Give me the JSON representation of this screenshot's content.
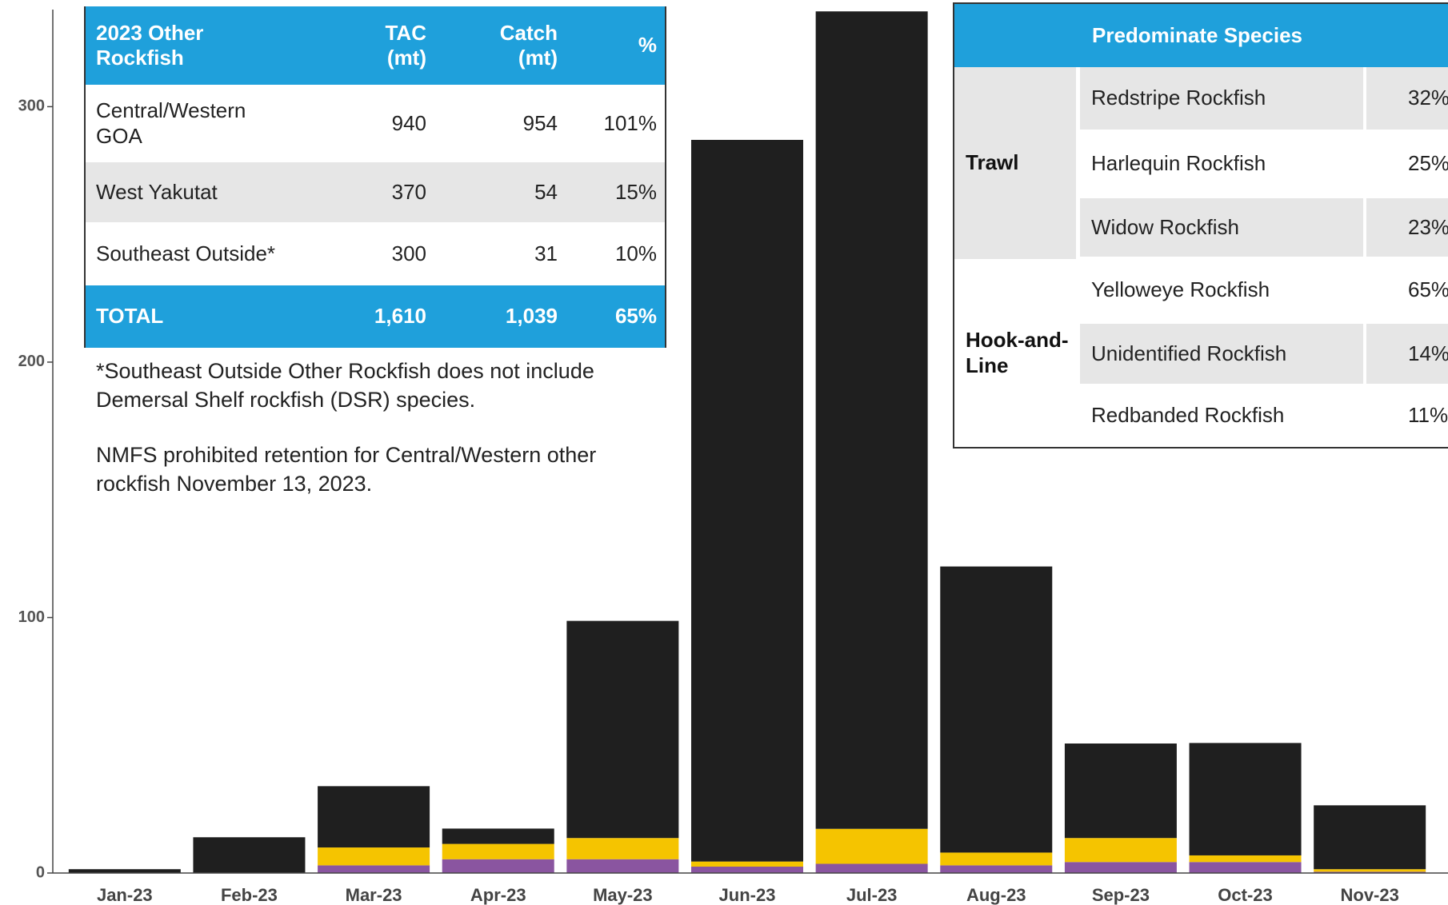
{
  "chart_data": {
    "type": "stacked_bar",
    "categories": [
      "Jan-23",
      "Feb-23",
      "Mar-23",
      "Apr-23",
      "May-23",
      "Jun-23",
      "Jul-23",
      "Aug-23",
      "Sep-23",
      "Oct-23",
      "Nov-23"
    ],
    "series": [
      {
        "color": "#8a55a0",
        "values": [
          0,
          0,
          3,
          5.4,
          5.4,
          2.5,
          3.6,
          3,
          4.3,
          4.3,
          0.5
        ]
      },
      {
        "color": "#f5c400",
        "values": [
          0,
          0,
          7,
          6,
          8.3,
          2,
          13.7,
          5,
          9.4,
          2.6,
          1
        ]
      },
      {
        "color": "#1f1f1f",
        "values": [
          1.5,
          14,
          24,
          6,
          85,
          282.5,
          320,
          112,
          37,
          44,
          25
        ]
      }
    ],
    "ylim": [
      0,
      338
    ],
    "yticks": [
      0,
      100,
      200,
      300
    ]
  },
  "catch_table": {
    "header": [
      "2023 Other Rockfish",
      "TAC (mt)",
      "Catch (mt)",
      "%"
    ],
    "rows": [
      [
        "Central/Western GOA",
        "940",
        "954",
        "101%"
      ],
      [
        "West Yakutat",
        "370",
        "54",
        "15%"
      ],
      [
        "Southeast Outside*",
        "300",
        "31",
        "10%"
      ]
    ],
    "total": [
      "TOTAL",
      "1,610",
      "1,039",
      "65%"
    ]
  },
  "notes": [
    "*Southeast Outside Other Rockfish does not include Demersal Shelf rockfish (DSR) species.",
    "NMFS prohibited retention for Central/Western other rockfish November 13, 2023."
  ],
  "species_table": {
    "header": "Predominate Species",
    "groups": [
      {
        "gear": "Trawl",
        "species": [
          [
            "Redstripe Rockfish",
            "32%"
          ],
          [
            "Harlequin Rockfish",
            "25%"
          ],
          [
            "Widow Rockfish",
            "23%"
          ]
        ]
      },
      {
        "gear": "Hook-and-Line",
        "species": [
          [
            "Yelloweye Rockfish",
            "65%"
          ],
          [
            "Unidentified Rockfish",
            "14%"
          ],
          [
            "Redbanded Rockfish",
            "11%"
          ]
        ]
      }
    ]
  }
}
